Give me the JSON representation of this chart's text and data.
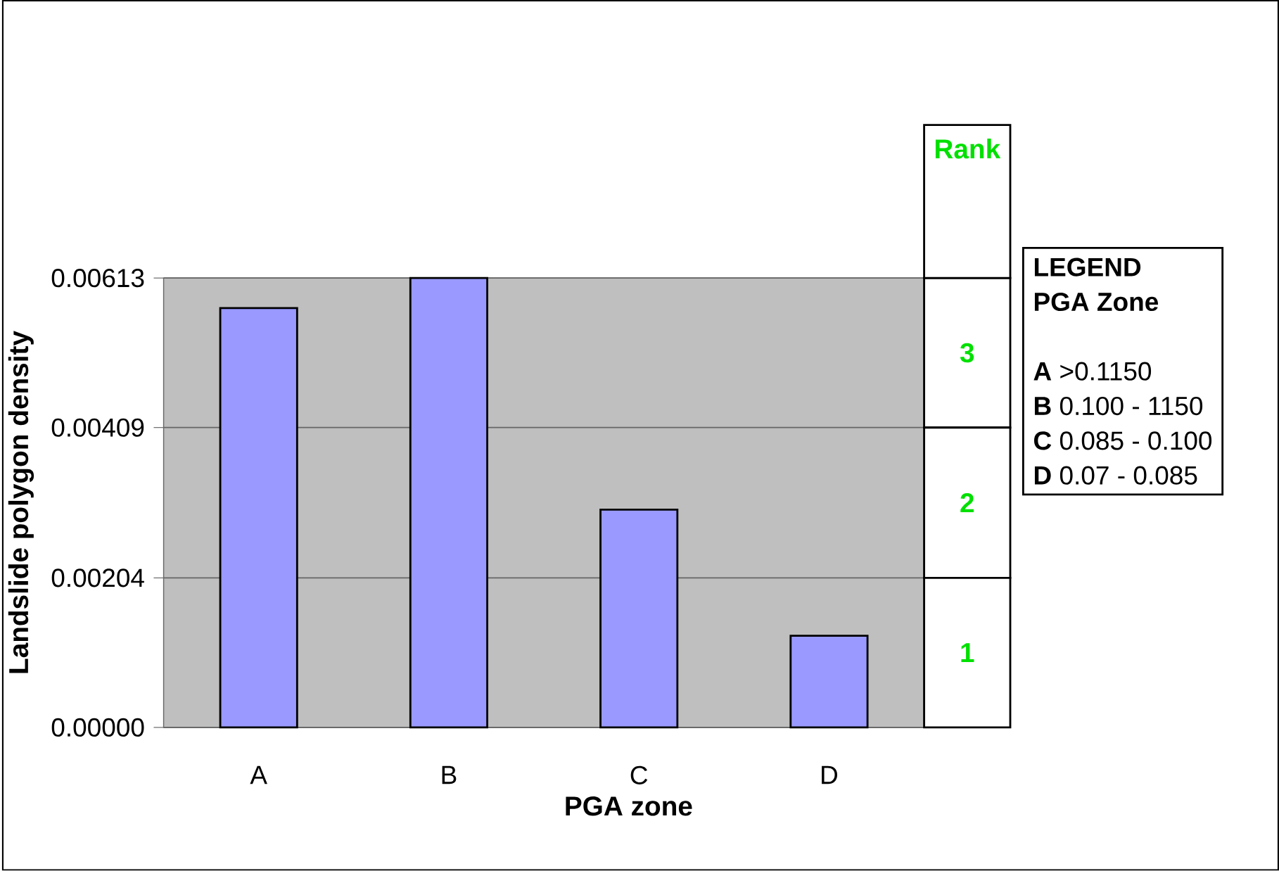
{
  "chart_data": {
    "type": "bar",
    "xlabel": "PGA zone",
    "ylabel": "Landslide polygon density",
    "categories": [
      "A",
      "B",
      "C",
      "D"
    ],
    "values": [
      0.00572,
      0.00613,
      0.00297,
      0.00125
    ],
    "color": "#9999ff",
    "ylim": [
      0,
      0.00613
    ],
    "yticks": [
      {
        "value": 0,
        "label": "0.00000"
      },
      {
        "value": 0.00204,
        "label": "0.00204"
      },
      {
        "value": 0.00409,
        "label": "0.00409"
      },
      {
        "value": 0.00613,
        "label": "0.00613"
      }
    ],
    "grid": "y",
    "annotations": [
      "Rank",
      "3",
      "2",
      "1",
      "LEGEND",
      "PGA Zone",
      "**A** >0.1150",
      "**B** 0.100 - 1150",
      "**C** 0.085 - 0.100",
      "**D** 0.07 - 0.085"
    ]
  }
}
